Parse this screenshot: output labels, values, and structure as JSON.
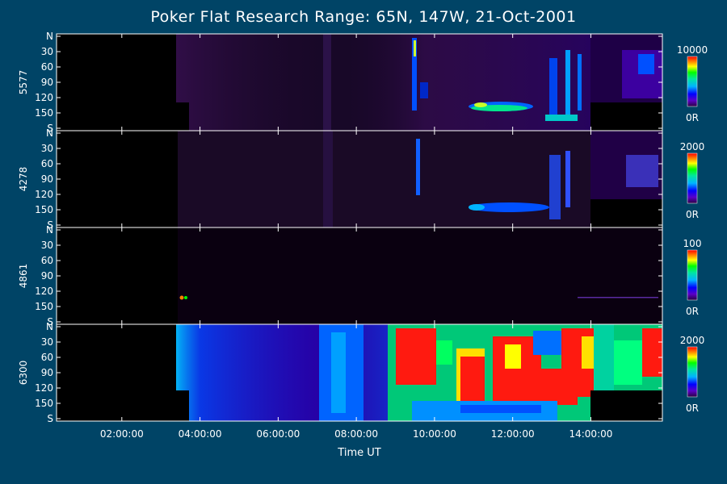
{
  "chart_data": {
    "type": "heatmap",
    "title": "Poker Flat Research Range: 65N, 147W, 21-Oct-2001",
    "xlabel": "Time UT",
    "x_range_hours_ut": [
      0.33,
      15.83
    ],
    "x_ticks": [
      "02:00:00",
      "04:00:00",
      "06:00:00",
      "08:00:00",
      "10:00:00",
      "12:00:00",
      "14:00:00"
    ],
    "x_tick_hours_ut": [
      2,
      4,
      6,
      8,
      10,
      12,
      14
    ],
    "y_ticks": [
      "N",
      "30",
      "60",
      "90",
      "120",
      "150",
      "S"
    ],
    "y_tick_values_deg": [
      0,
      30,
      60,
      90,
      120,
      150,
      180
    ],
    "panels": [
      {
        "ylabel": "5577",
        "colorbar": {
          "max": "10000",
          "min": "0R"
        }
      },
      {
        "ylabel": "4278",
        "colorbar": {
          "max": "2000",
          "min": "0R"
        }
      },
      {
        "ylabel": "4861",
        "colorbar": {
          "max": "100",
          "min": "0R"
        }
      },
      {
        "ylabel": "6300",
        "colorbar": {
          "max": "2000",
          "min": "0R"
        }
      }
    ],
    "colormap": [
      "#2a0040",
      "#5a00c8",
      "#0000ff",
      "#00b4ff",
      "#00e6a0",
      "#00ff00",
      "#ffff00",
      "#ff8000",
      "#ff0000"
    ],
    "grid": false,
    "legend": "colorbars-right"
  }
}
